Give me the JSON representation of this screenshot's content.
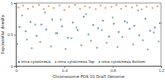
{
  "chart_data": {
    "type": "scatter",
    "x_label": "Chromosome POS 10 Draft Genome",
    "y_label": "Exponential density",
    "xlim": [
      0,
      1.2
    ],
    "xticks": [
      0,
      0.4,
      0.8,
      1.2
    ],
    "ylim": [
      0,
      1
    ],
    "yticks": [
      0,
      0.5,
      1
    ],
    "legend": "lower left",
    "marker": "circle",
    "series": [
      {
        "name": "Intra cytokinesis",
        "color": "#4c72b0",
        "x": [
          0.03,
          0.08,
          0.12,
          0.17,
          0.21,
          0.25,
          0.3,
          0.34,
          0.38,
          0.43,
          0.47,
          0.51,
          0.56,
          0.6,
          0.64,
          0.68,
          0.72,
          0.77,
          0.81,
          0.85,
          0.9,
          0.94,
          0.98,
          1.02,
          1.07,
          1.11,
          1.15,
          1.19
        ],
        "values": [
          0.62,
          0.55,
          0.7,
          0.48,
          0.66,
          0.58,
          0.74,
          0.52,
          0.63,
          0.45,
          0.69,
          0.57,
          0.78,
          0.5,
          0.65,
          0.6,
          0.72,
          0.47,
          0.67,
          0.54,
          0.71,
          0.59,
          0.64,
          0.49,
          0.75,
          0.56,
          0.61,
          0.68
        ]
      },
      {
        "name": "Intra cytokinesis Top",
        "color": "#dd8452",
        "x": [
          0.02,
          0.06,
          0.1,
          0.14,
          0.19,
          0.23,
          0.27,
          0.31,
          0.36,
          0.4,
          0.44,
          0.49,
          0.53,
          0.57,
          0.61,
          0.66,
          0.7,
          0.74,
          0.79,
          0.83,
          0.87,
          0.91,
          0.96,
          1.0,
          1.04,
          1.08,
          1.13,
          1.17
        ],
        "values": [
          0.93,
          0.96,
          0.91,
          0.94,
          0.97,
          0.9,
          0.95,
          0.92,
          0.96,
          0.89,
          0.94,
          0.97,
          0.91,
          0.95,
          0.93,
          0.9,
          0.96,
          0.92,
          0.94,
          0.97,
          0.91,
          0.95,
          0.93,
          0.96,
          0.9,
          0.94,
          0.92,
          0.95
        ]
      },
      {
        "name": "Intra cytokinesis Bottom",
        "color": "#55a868",
        "x": [
          0.01,
          0.05,
          0.09,
          0.13,
          0.16,
          0.2,
          0.24,
          0.29,
          0.33,
          0.37,
          0.41,
          0.46,
          0.5,
          0.54,
          0.58,
          0.62,
          0.67,
          0.71,
          0.75,
          0.8,
          0.84,
          0.88,
          0.92,
          0.97,
          1.01,
          1.05,
          1.09,
          1.14,
          1.18
        ],
        "values": [
          0.35,
          0.8,
          0.42,
          0.28,
          0.66,
          0.38,
          0.85,
          0.31,
          0.52,
          0.74,
          0.27,
          0.44,
          0.61,
          0.33,
          0.82,
          0.4,
          0.29,
          0.57,
          0.37,
          0.77,
          0.3,
          0.46,
          0.69,
          0.34,
          0.88,
          0.41,
          0.26,
          0.53,
          0.39
        ]
      }
    ]
  }
}
